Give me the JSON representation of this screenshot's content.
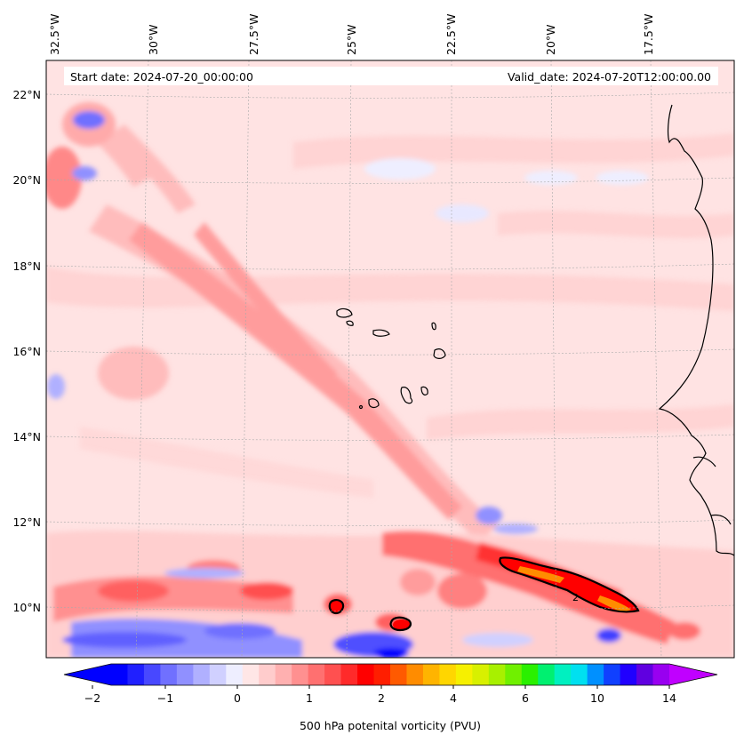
{
  "map": {
    "start_label": "Start date: 2024-07-20_00:00:00",
    "valid_label": "Valid_date: 2024-07-20T12:00:00.00",
    "variable": "500 hPa potenital vorticity (PVU)",
    "lon_labels": [
      "32.5°W",
      "30°W",
      "27.5°W",
      "25°W",
      "22.5°W",
      "20°W",
      "17.5°W"
    ],
    "lat_labels": [
      "22°N",
      "20°N",
      "18°N",
      "16°N",
      "14°N",
      "12°N",
      "10°N"
    ],
    "contour_level_label": "2"
  },
  "colorbar": {
    "tick_labels": [
      "−2",
      "−1",
      "0",
      "1",
      "2",
      "4",
      "6",
      "10",
      "14"
    ],
    "colors": [
      "#0000ff",
      "#2020ff",
      "#4848ff",
      "#7070ff",
      "#9090ff",
      "#b0b0ff",
      "#d0d0ff",
      "#eeeeff",
      "#ffe6e6",
      "#ffcccc",
      "#ffb0b0",
      "#ff9090",
      "#ff7070",
      "#ff5050",
      "#ff2a2a",
      "#ff0000",
      "#ff1e00",
      "#ff5a00",
      "#ff8c00",
      "#ffb400",
      "#ffd600",
      "#f6f000",
      "#d8f000",
      "#a8f000",
      "#70f000",
      "#2af000",
      "#00f070",
      "#00f0c0",
      "#00e0f0",
      "#0090ff",
      "#1040ff",
      "#2000ff",
      "#6000e0",
      "#9800f0"
    ],
    "under_color": "#0000ff",
    "over_color": "#c000ff"
  }
}
